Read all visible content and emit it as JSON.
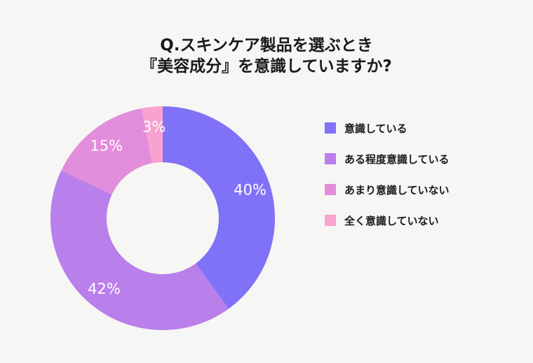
{
  "title_lines": [
    "Q.スキンケア製品を選ぶとき",
    "『美容成分』を意識していますか?"
  ],
  "chart_data": {
    "type": "pie",
    "donut": true,
    "title": "Q.スキンケア製品を選ぶとき『美容成分』を意識していますか?",
    "categories": [
      "意識している",
      "ある程度意識している",
      "あまり意識していない",
      "全く意識していない"
    ],
    "values": [
      40,
      42,
      15,
      3
    ],
    "value_labels": [
      "40%",
      "42%",
      "15%",
      "3%"
    ],
    "colors": [
      "#7f72f7",
      "#b97fea",
      "#e28ddb",
      "#f8a2cf"
    ],
    "legend_placement": "right",
    "start_angle": "top",
    "direction": "clockwise"
  }
}
